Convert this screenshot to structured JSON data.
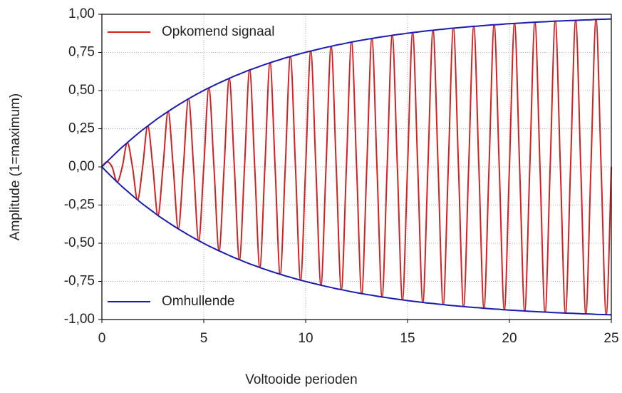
{
  "chart_data": {
    "type": "line",
    "xlabel": "Voltooide perioden",
    "ylabel": "Amplitude (1=maximum)",
    "x": [
      0,
      0.25,
      0.5,
      0.75,
      1,
      1.25,
      1.5,
      1.75,
      2,
      2.25,
      2.5,
      2.75,
      3,
      3.25,
      3.5,
      3.75,
      4,
      4.25,
      4.5,
      4.75,
      5,
      5.25,
      5.5,
      5.75,
      6,
      6.25,
      6.5,
      6.75,
      7,
      7.25,
      7.5,
      7.75,
      8,
      8.25,
      8.5,
      8.75,
      9,
      9.25,
      9.5,
      9.75,
      10,
      10.25,
      10.5,
      10.75,
      11,
      11.25,
      11.5,
      11.75,
      12,
      12.25,
      12.5,
      12.75,
      13,
      13.25,
      13.5,
      13.75,
      14,
      14.25,
      14.5,
      14.75,
      15,
      15.25,
      15.5,
      15.75,
      16,
      16.25,
      16.5,
      16.75,
      17,
      17.25,
      17.5,
      17.75,
      18,
      18.25,
      18.5,
      18.75,
      19,
      19.25,
      19.5,
      19.75,
      20,
      20.25,
      20.5,
      20.75,
      21,
      21.25,
      21.5,
      21.75,
      22,
      22.25,
      22.5,
      22.75,
      23,
      23.25,
      23.5,
      23.75,
      24,
      24.25,
      24.5,
      24.75,
      25
    ],
    "series": [
      {
        "name": "Opkomend signaal",
        "color": "#d42020",
        "legend": "upper left",
        "smooth": true,
        "values": [
          0,
          0.034,
          0,
          -0.099,
          0,
          0.159,
          0,
          -0.216,
          0,
          0.268,
          0,
          -0.318,
          0,
          0.363,
          0,
          -0.406,
          0,
          0.446,
          0,
          -0.483,
          0,
          0.518,
          0,
          -0.55,
          0,
          0.58,
          0,
          -0.608,
          0,
          0.635,
          0,
          -0.659,
          0,
          0.682,
          0,
          -0.703,
          0,
          0.723,
          0,
          -0.742,
          0,
          0.759,
          0,
          -0.775,
          0,
          0.79,
          0,
          -0.804,
          0,
          0.818,
          0,
          -0.83,
          0,
          0.841,
          0,
          -0.852,
          0,
          0.862,
          0,
          -0.871,
          0,
          0.88,
          0,
          -0.888,
          0,
          0.895,
          0,
          -0.902,
          0,
          0.909,
          0,
          -0.915,
          0,
          0.921,
          0,
          -0.926,
          0,
          0.931,
          0,
          -0.936,
          0,
          0.94,
          0,
          -0.944,
          0,
          0.948,
          0,
          -0.951,
          0,
          0.955,
          0,
          -0.958,
          0,
          0.96,
          0,
          -0.963,
          0,
          0.966,
          0,
          -0.968,
          0
        ]
      },
      {
        "name": "Omhullende",
        "color": "#1c1cb0",
        "legend": "lower left",
        "smooth": true,
        "values": [
          0,
          0.034,
          0.067,
          0.099,
          0.13,
          0.159,
          0.188,
          0.216,
          0.243,
          0.268,
          0.293,
          0.318,
          0.341,
          0.363,
          0.385,
          0.406,
          0.426,
          0.446,
          0.465,
          0.483,
          0.501,
          0.518,
          0.534,
          0.55,
          0.565,
          0.58,
          0.595,
          0.608,
          0.622,
          0.635,
          0.647,
          0.659,
          0.671,
          0.682,
          0.693,
          0.703,
          0.714,
          0.723,
          0.733,
          0.742,
          0.751,
          0.759,
          0.767,
          0.775,
          0.783,
          0.79,
          0.798,
          0.804,
          0.811,
          0.818,
          0.824,
          0.83,
          0.836,
          0.841,
          0.847,
          0.852,
          0.857,
          0.862,
          0.867,
          0.871,
          0.876,
          0.88,
          0.884,
          0.888,
          0.892,
          0.895,
          0.899,
          0.902,
          0.906,
          0.909,
          0.912,
          0.915,
          0.918,
          0.921,
          0.923,
          0.926,
          0.929,
          0.931,
          0.933,
          0.936,
          0.938,
          0.94,
          0.942,
          0.944,
          0.946,
          0.948,
          0.95,
          0.951,
          0.953,
          0.955,
          0.956,
          0.958,
          0.959,
          0.96,
          0.962,
          0.963,
          0.964,
          0.966,
          0.967,
          0.968,
          0.969
        ]
      },
      {
        "color": "#1c1cb0",
        "smooth": true,
        "values": [
          0,
          -0.034,
          -0.067,
          -0.099,
          -0.13,
          -0.159,
          -0.188,
          -0.216,
          -0.243,
          -0.268,
          -0.293,
          -0.318,
          -0.341,
          -0.363,
          -0.385,
          -0.406,
          -0.426,
          -0.446,
          -0.465,
          -0.483,
          -0.501,
          -0.518,
          -0.534,
          -0.55,
          -0.565,
          -0.58,
          -0.595,
          -0.608,
          -0.622,
          -0.635,
          -0.647,
          -0.659,
          -0.671,
          -0.682,
          -0.693,
          -0.703,
          -0.714,
          -0.723,
          -0.733,
          -0.742,
          -0.751,
          -0.759,
          -0.767,
          -0.775,
          -0.783,
          -0.79,
          -0.798,
          -0.804,
          -0.811,
          -0.818,
          -0.824,
          -0.83,
          -0.836,
          -0.841,
          -0.847,
          -0.852,
          -0.857,
          -0.862,
          -0.867,
          -0.871,
          -0.876,
          -0.88,
          -0.884,
          -0.888,
          -0.892,
          -0.895,
          -0.899,
          -0.902,
          -0.906,
          -0.909,
          -0.912,
          -0.915,
          -0.918,
          -0.921,
          -0.923,
          -0.926,
          -0.929,
          -0.931,
          -0.933,
          -0.936,
          -0.938,
          -0.94,
          -0.942,
          -0.944,
          -0.946,
          -0.948,
          -0.95,
          -0.951,
          -0.953,
          -0.955,
          -0.956,
          -0.958,
          -0.959,
          -0.96,
          -0.962,
          -0.963,
          -0.964,
          -0.966,
          -0.967,
          -0.968,
          -0.969
        ]
      }
    ],
    "xlim": [
      0,
      25
    ],
    "xticks": [
      0,
      5,
      10,
      15,
      20,
      25
    ],
    "ylim": [
      -1,
      1
    ],
    "yticks": [
      {
        "value": -1,
        "label": "-1,00"
      },
      {
        "value": -0.75,
        "label": "-0,75"
      },
      {
        "value": -0.5,
        "label": "-0,50"
      },
      {
        "value": -0.25,
        "label": "-0,25"
      },
      {
        "value": 0,
        "label": "0,00"
      },
      {
        "value": 0.25,
        "label": "0,25"
      },
      {
        "value": 0.5,
        "label": "0,50"
      },
      {
        "value": 0.75,
        "label": "0,75"
      },
      {
        "value": 1,
        "label": "1,00"
      }
    ],
    "grid": true
  }
}
